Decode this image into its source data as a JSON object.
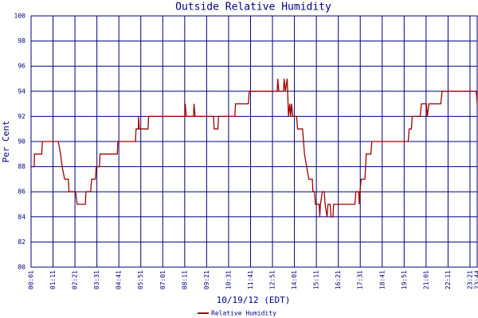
{
  "chart_data": {
    "type": "line",
    "title": "Outside Relative Humidity",
    "xlabel": "10/19/12 (EDT)",
    "ylabel": "Per Cent",
    "x": [
      1,
      11,
      12,
      35,
      37,
      88,
      95,
      100,
      108,
      120,
      122,
      143,
      148,
      174,
      176,
      191,
      194,
      206,
      209,
      219,
      221,
      276,
      278,
      334,
      336,
      343,
      344,
      346,
      374,
      376,
      491,
      493,
      496,
      519,
      521,
      524,
      583,
      585,
      597,
      599,
      651,
      653,
      694,
      697,
      786,
      788,
      791,
      806,
      808,
      812,
      818,
      822,
      826,
      829,
      832,
      836,
      848,
      851,
      867,
      870,
      873,
      880,
      887,
      898,
      900,
      905,
      908,
      920,
      922,
      924,
      930,
      936,
      939,
      945,
      948,
      955,
      958,
      964,
      966,
      1034,
      1037,
      1046,
      1048,
      1050,
      1054,
      1066,
      1070,
      1085,
      1088,
      1100,
      1204,
      1207,
      1214,
      1217,
      1242,
      1246,
      1262,
      1265,
      1270,
      1308,
      1312,
      1421,
      1424
    ],
    "series": [
      {
        "name": "Relative Humidity",
        "color": "#a00000",
        "values": [
          88,
          88,
          89,
          89,
          90,
          90,
          89,
          88,
          87,
          87,
          86,
          86,
          85,
          85,
          86,
          86,
          87,
          87,
          88,
          88,
          89,
          89,
          90,
          90,
          91,
          91,
          92,
          91,
          91,
          92,
          92,
          93,
          92,
          92,
          93,
          92,
          92,
          91,
          91,
          92,
          92,
          93,
          93,
          94,
          94,
          95,
          94,
          94,
          95,
          94,
          95,
          92,
          93,
          92,
          93,
          92,
          92,
          91,
          91,
          90,
          89,
          88,
          87,
          87,
          86,
          86,
          85,
          85,
          84,
          85,
          86,
          86,
          85,
          84,
          85,
          85,
          84,
          84,
          85,
          85,
          86,
          86,
          85,
          86,
          87,
          87,
          89,
          89,
          90,
          90,
          90,
          91,
          91,
          92,
          92,
          93,
          93,
          92,
          93,
          93,
          94,
          94,
          93
        ]
      }
    ],
    "xlim": [
      1,
      1424
    ],
    "xticks": [
      {
        "value": 1,
        "label": "00:01"
      },
      {
        "value": 71,
        "label": "01:11"
      },
      {
        "value": 141,
        "label": "02:21"
      },
      {
        "value": 211,
        "label": "03:31"
      },
      {
        "value": 281,
        "label": "04:41"
      },
      {
        "value": 351,
        "label": "05:51"
      },
      {
        "value": 421,
        "label": "07:01"
      },
      {
        "value": 491,
        "label": "08:11"
      },
      {
        "value": 561,
        "label": "09:21"
      },
      {
        "value": 631,
        "label": "10:31"
      },
      {
        "value": 701,
        "label": "11:41"
      },
      {
        "value": 771,
        "label": "12:51"
      },
      {
        "value": 841,
        "label": "14:01"
      },
      {
        "value": 911,
        "label": "15:11"
      },
      {
        "value": 981,
        "label": "16:21"
      },
      {
        "value": 1051,
        "label": "17:31"
      },
      {
        "value": 1121,
        "label": "18:41"
      },
      {
        "value": 1191,
        "label": "19:51"
      },
      {
        "value": 1261,
        "label": "21:01"
      },
      {
        "value": 1331,
        "label": "22:11"
      },
      {
        "value": 1401,
        "label": "23:21"
      },
      {
        "value": 1424,
        "label": "23:44"
      }
    ],
    "ylim": [
      80,
      100
    ],
    "yticks": [
      80,
      82,
      84,
      86,
      88,
      90,
      92,
      94,
      96,
      98,
      100
    ],
    "grid": true
  }
}
